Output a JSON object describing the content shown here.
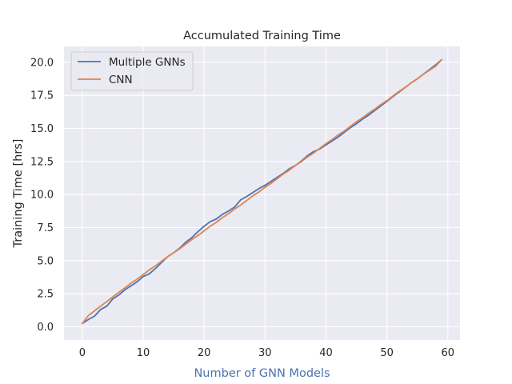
{
  "chart_data": {
    "type": "line",
    "title": "Accumulated Training Time",
    "xlabel": "Number of GNN Models",
    "ylabel": "Training Time [hrs]",
    "xlim": [
      -3,
      62
    ],
    "ylim": [
      -1.0,
      21.2
    ],
    "xticks": [
      0,
      10,
      20,
      30,
      40,
      50,
      60
    ],
    "yticks": [
      0.0,
      2.5,
      5.0,
      7.5,
      10.0,
      12.5,
      15.0,
      17.5,
      20.0
    ],
    "xtick_labels": [
      "0",
      "10",
      "20",
      "30",
      "40",
      "50",
      "60"
    ],
    "ytick_labels": [
      "0.0",
      "2.5",
      "5.0",
      "7.5",
      "10.0",
      "12.5",
      "15.0",
      "17.5",
      "20.0"
    ],
    "grid": true,
    "legend_position": "top-left",
    "xlabel_color": "#4c72b0",
    "ylabel_color": "#262626",
    "background": "#eaeaf2",
    "series": [
      {
        "name": "Multiple GNNs",
        "color": "#4c72b0",
        "x": [
          0,
          1,
          2,
          3,
          4,
          5,
          6,
          7,
          8,
          9,
          10,
          11,
          12,
          13,
          14,
          15,
          16,
          17,
          18,
          19,
          20,
          21,
          22,
          23,
          24,
          25,
          26,
          27,
          28,
          29,
          30,
          31,
          32,
          33,
          34,
          35,
          36,
          37,
          38,
          39,
          40,
          41,
          42,
          43,
          44,
          45,
          46,
          47,
          48,
          49,
          50,
          51,
          52,
          53,
          54,
          55,
          56,
          57,
          58,
          59
        ],
        "values": [
          0.25,
          0.55,
          0.8,
          1.3,
          1.55,
          2.1,
          2.4,
          2.8,
          3.1,
          3.4,
          3.8,
          4.0,
          4.4,
          4.85,
          5.3,
          5.6,
          5.95,
          6.4,
          6.75,
          7.2,
          7.6,
          7.95,
          8.15,
          8.5,
          8.75,
          9.05,
          9.6,
          9.85,
          10.15,
          10.45,
          10.7,
          11.0,
          11.3,
          11.6,
          11.95,
          12.2,
          12.55,
          12.95,
          13.25,
          13.45,
          13.75,
          14.05,
          14.35,
          14.7,
          15.05,
          15.35,
          15.7,
          16.0,
          16.35,
          16.7,
          17.05,
          17.4,
          17.75,
          18.1,
          18.45,
          18.75,
          19.1,
          19.45,
          19.8,
          20.2
        ]
      },
      {
        "name": "CNN",
        "color": "#dd8452",
        "x": [
          0,
          1,
          2,
          3,
          4,
          5,
          6,
          7,
          8,
          9,
          10,
          11,
          12,
          13,
          14,
          15,
          16,
          17,
          18,
          19,
          20,
          21,
          22,
          23,
          24,
          25,
          26,
          27,
          28,
          29,
          30,
          31,
          32,
          33,
          34,
          35,
          36,
          37,
          38,
          39,
          40,
          41,
          42,
          43,
          44,
          45,
          46,
          47,
          48,
          49,
          50,
          51,
          52,
          53,
          54,
          55,
          56,
          57,
          58,
          59
        ],
        "values": [
          0.25,
          0.85,
          1.2,
          1.55,
          1.9,
          2.25,
          2.6,
          2.95,
          3.3,
          3.6,
          3.95,
          4.3,
          4.6,
          4.95,
          5.3,
          5.6,
          5.9,
          6.25,
          6.6,
          6.9,
          7.25,
          7.6,
          7.9,
          8.25,
          8.55,
          8.9,
          9.2,
          9.55,
          9.9,
          10.2,
          10.55,
          10.85,
          11.2,
          11.55,
          11.85,
          12.2,
          12.5,
          12.85,
          13.15,
          13.5,
          13.85,
          14.15,
          14.5,
          14.8,
          15.15,
          15.5,
          15.8,
          16.15,
          16.45,
          16.8,
          17.1,
          17.45,
          17.8,
          18.1,
          18.45,
          18.75,
          19.1,
          19.4,
          19.7,
          20.2
        ]
      }
    ]
  }
}
